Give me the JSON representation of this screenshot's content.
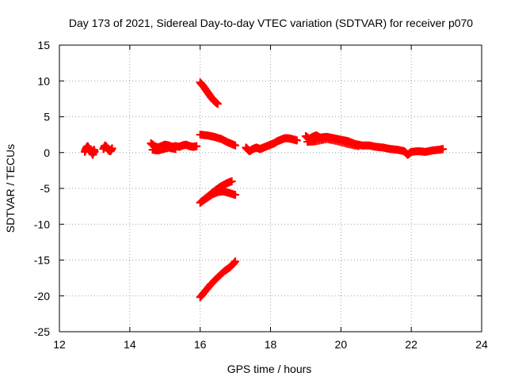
{
  "chart_data": {
    "type": "scatter",
    "title": "Day 173 of 2021, Sidereal Day-to-day VTEC variation (SDTVAR) for receiver p070",
    "xlabel": "GPS time / hours",
    "ylabel": "SDTVAR / TECUs",
    "xlim": [
      12,
      24
    ],
    "ylim": [
      -25,
      15
    ],
    "xticks": [
      "12",
      "14",
      "16",
      "18",
      "20",
      "22",
      "24"
    ],
    "yticks": [
      "15",
      "10",
      "5",
      "0",
      "-5",
      "-10",
      "-15",
      "-20",
      "-25"
    ],
    "grid": true,
    "legend": "none",
    "marker": "plus",
    "series_color": "#ff0000",
    "series": [
      {
        "segments": [
          [
            [
              12.72,
              0.1
            ],
            [
              12.76,
              0.6
            ],
            [
              12.8,
              0.9
            ],
            [
              12.85,
              0.5
            ],
            [
              12.9,
              0.2
            ],
            [
              12.95,
              -0.3
            ],
            [
              12.98,
              0.4
            ],
            [
              13.0,
              0.1
            ]
          ],
          [
            [
              13.25,
              0.5
            ],
            [
              13.3,
              1.0
            ],
            [
              13.35,
              0.7
            ],
            [
              13.4,
              0.3
            ],
            [
              13.45,
              0.2
            ],
            [
              13.5,
              0.6
            ]
          ],
          [
            [
              14.6,
              1.3
            ],
            [
              14.7,
              0.9
            ],
            [
              14.8,
              0.7
            ],
            [
              14.9,
              0.9
            ],
            [
              15.0,
              1.1
            ],
            [
              15.1,
              1.0
            ],
            [
              15.2,
              0.8
            ],
            [
              15.3,
              0.9
            ],
            [
              15.4,
              0.8
            ],
            [
              15.5,
              1.0
            ],
            [
              15.6,
              1.1
            ],
            [
              15.7,
              0.9
            ],
            [
              15.8,
              0.8
            ],
            [
              15.9,
              0.9
            ]
          ],
          [
            [
              14.65,
              0.4
            ],
            [
              14.8,
              0.3
            ],
            [
              14.95,
              0.5
            ],
            [
              15.1,
              0.7
            ],
            [
              15.3,
              0.5
            ]
          ],
          [
            [
              16.0,
              9.8
            ],
            [
              16.1,
              9.2
            ],
            [
              16.2,
              8.5
            ],
            [
              16.3,
              7.8
            ],
            [
              16.4,
              7.2
            ],
            [
              16.5,
              6.8
            ]
          ],
          [
            [
              16.0,
              2.5
            ],
            [
              16.2,
              2.4
            ],
            [
              16.4,
              2.2
            ],
            [
              16.6,
              1.9
            ],
            [
              16.8,
              1.4
            ],
            [
              17.0,
              1.0
            ]
          ],
          [
            [
              16.0,
              -7.0
            ],
            [
              16.15,
              -6.4
            ],
            [
              16.3,
              -5.8
            ],
            [
              16.45,
              -5.2
            ],
            [
              16.6,
              -4.7
            ],
            [
              16.75,
              -4.3
            ],
            [
              16.9,
              -4.0
            ]
          ],
          [
            [
              16.05,
              -6.8
            ],
            [
              16.2,
              -6.3
            ],
            [
              16.35,
              -5.8
            ],
            [
              16.5,
              -5.5
            ],
            [
              16.65,
              -5.4
            ],
            [
              16.8,
              -5.6
            ],
            [
              17.0,
              -5.9
            ]
          ],
          [
            [
              16.0,
              -20.2
            ],
            [
              16.15,
              -19.3
            ],
            [
              16.3,
              -18.4
            ],
            [
              16.5,
              -17.4
            ],
            [
              16.7,
              -16.5
            ],
            [
              16.85,
              -16.0
            ],
            [
              17.0,
              -15.2
            ]
          ],
          [
            [
              17.3,
              0.7
            ],
            [
              17.4,
              0.2
            ],
            [
              17.5,
              0.5
            ],
            [
              17.6,
              0.7
            ],
            [
              17.7,
              0.5
            ],
            [
              17.8,
              0.7
            ],
            [
              17.9,
              0.9
            ],
            [
              18.0,
              1.1
            ],
            [
              18.1,
              1.3
            ],
            [
              18.2,
              1.6
            ],
            [
              18.3,
              1.8
            ],
            [
              18.4,
              2.0
            ],
            [
              18.5,
              2.0
            ],
            [
              18.6,
              1.9
            ],
            [
              18.75,
              1.7
            ]
          ],
          [
            [
              19.0,
              2.3
            ],
            [
              19.1,
              1.9
            ],
            [
              19.2,
              2.2
            ],
            [
              19.3,
              2.4
            ],
            [
              19.4,
              2.1
            ],
            [
              19.6,
              2.2
            ],
            [
              19.8,
              2.0
            ],
            [
              20.0,
              1.8
            ],
            [
              20.2,
              1.6
            ],
            [
              20.4,
              1.2
            ],
            [
              20.6,
              1.0
            ],
            [
              20.8,
              1.0
            ],
            [
              21.0,
              0.8
            ],
            [
              21.2,
              0.7
            ],
            [
              21.4,
              0.5
            ],
            [
              21.6,
              0.4
            ],
            [
              21.8,
              0.2
            ],
            [
              21.9,
              -0.3
            ],
            [
              22.0,
              0.1
            ],
            [
              22.2,
              0.2
            ],
            [
              22.4,
              0.1
            ],
            [
              22.6,
              0.3
            ],
            [
              22.8,
              0.4
            ],
            [
              22.9,
              0.5
            ]
          ],
          [
            [
              19.05,
              1.5
            ],
            [
              19.3,
              1.6
            ],
            [
              19.6,
              1.9
            ],
            [
              19.9,
              1.6
            ],
            [
              20.2,
              1.2
            ],
            [
              20.5,
              0.9
            ]
          ]
        ]
      }
    ]
  }
}
